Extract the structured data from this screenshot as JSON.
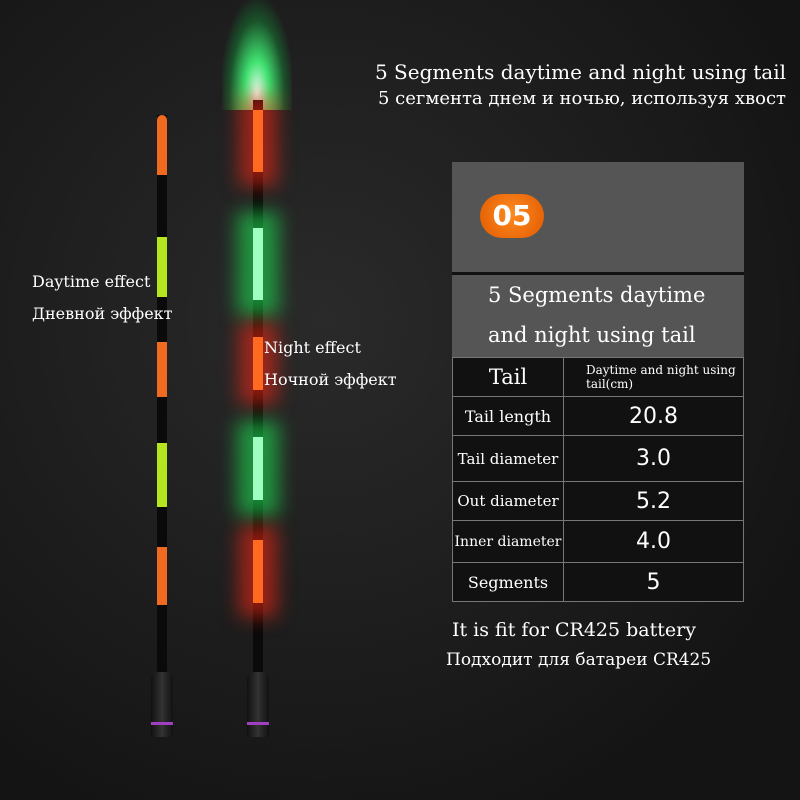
{
  "heading": {
    "en": "5 Segments daytime and night using tail",
    "ru": "5 сегмента днем и ночью, используя хвост"
  },
  "labels": {
    "day_en": "Daytime effect",
    "day_ru": "Дневной эффект",
    "night_en": "Night effect",
    "night_ru": "Ночной эффект"
  },
  "card": {
    "badge": "05",
    "title_line1": "5 Segments daytime",
    "title_line2": "and night using tail"
  },
  "table": {
    "header": [
      "Tail",
      "Daytime and night using tail(cm)"
    ],
    "rows": [
      [
        "Tail length",
        "20.8"
      ],
      [
        "Tail diameter",
        "3.0"
      ],
      [
        "Out diameter",
        "5.2"
      ],
      [
        "Inner diameter",
        "4.0"
      ],
      [
        "Segments",
        "5"
      ]
    ]
  },
  "footer": {
    "en": "It is fit for CR425 battery",
    "ru": "Подходит для батареи CR425"
  },
  "colors": {
    "orange": "#f06a20",
    "lime": "#b5e61d",
    "green_glow": "#1edc50",
    "badge": "#f07010"
  }
}
